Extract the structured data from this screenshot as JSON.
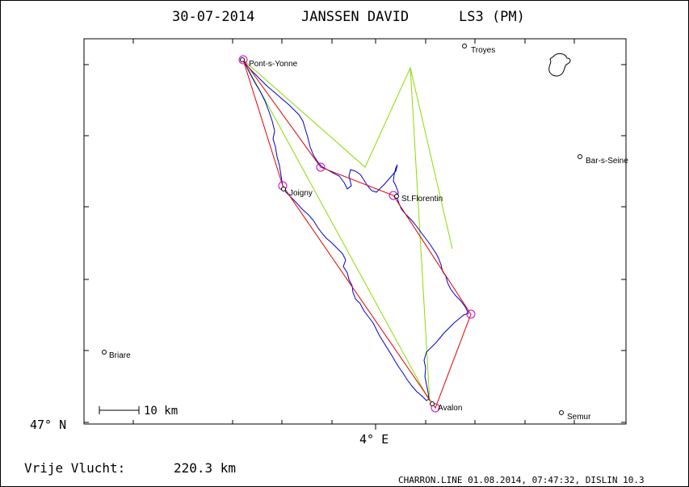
{
  "header": {
    "date": "30-07-2014",
    "pilot": "JANSSEN DAVID",
    "glider": "LS3 (PM)"
  },
  "axes": {
    "lat_label": "47° N",
    "lon_label": "4° E"
  },
  "scale": {
    "label": "10 km"
  },
  "footer": {
    "flight_label": "Vrije Vlucht:",
    "distance": "220.3 km",
    "software": "CHARRON.LINE 01.08.2014, 07:47:32, DISLIN 10.3"
  },
  "towns": {
    "pont": "Pont-s-Yonne",
    "troyes": "Troyes",
    "bar": "Bar-s-Seine",
    "joigny": "Joigny",
    "florentin": "St.Florentin",
    "briare": "Briare",
    "avalon": "Avalon",
    "semur": "Semur"
  },
  "colors": {
    "track": "#0000cc",
    "task": "#e00000",
    "turnpoint": "#cc00cc",
    "optimized": "#88dd00",
    "frame": "#000000"
  }
}
